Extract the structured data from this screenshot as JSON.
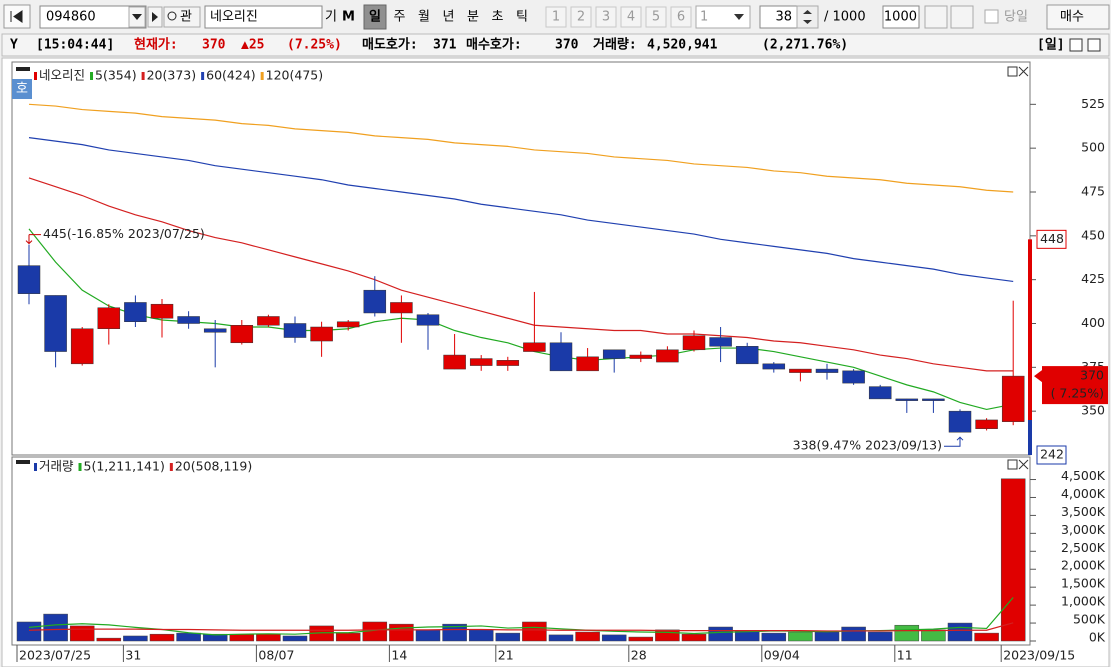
{
  "toolbar": {
    "code": "094860",
    "search": "관",
    "name": "네오리진",
    "buttons": [
      "기",
      "M"
    ],
    "periods": [
      "일",
      "주",
      "월",
      "년",
      "분",
      "초",
      "틱"
    ],
    "slots": [
      "1",
      "2",
      "3",
      "4",
      "5",
      "6"
    ],
    "slot_select": "1",
    "count": "38",
    "total": "/ 1000",
    "total_input": "1000",
    "today": "당일",
    "buy": "매수"
  },
  "info_bar": {
    "time": "[15:04:44]",
    "price_label": "현재가:",
    "price": "370",
    "change": "▲25",
    "change_pct": "(7.25%)",
    "ask_label": "매도호가:",
    "ask": "371",
    "bid_label": "매수호가:",
    "bid": "370",
    "volume_label": "거래량:",
    "volume": "4,520,941",
    "volume_pct": "(2,271.76%)",
    "period": "[일]"
  },
  "chart_data": [
    {
      "type": "candlestick",
      "name": "네오리진",
      "badge": "호",
      "up_color": "#e00000",
      "down_color": "#1a3aa8",
      "open": [
        433,
        416,
        377,
        397,
        412,
        403,
        404,
        397,
        389,
        399,
        400,
        390,
        398,
        419,
        406,
        405,
        374,
        376,
        376,
        384,
        389,
        373,
        385,
        380,
        378,
        385,
        392,
        387,
        377,
        372,
        374,
        373,
        364,
        357,
        357,
        350,
        340,
        344
      ],
      "high": [
        445,
        416,
        398,
        411,
        416,
        414,
        407,
        402,
        402,
        405,
        404,
        401,
        402,
        427,
        416,
        406,
        394,
        382,
        381,
        418,
        395,
        386,
        385,
        384,
        387,
        396,
        398,
        389,
        378,
        374,
        377,
        374,
        365,
        357,
        357,
        351,
        346,
        413
      ],
      "low": [
        411,
        375,
        376,
        388,
        398,
        392,
        397,
        375,
        388,
        398,
        389,
        381,
        396,
        404,
        389,
        385,
        374,
        373,
        373,
        384,
        373,
        373,
        372,
        378,
        378,
        384,
        378,
        377,
        372,
        367,
        368,
        365,
        357,
        349,
        349,
        338,
        339,
        342
      ],
      "close": [
        417,
        384,
        397,
        409,
        401,
        411,
        400,
        395,
        399,
        404,
        392,
        398,
        401,
        406,
        412,
        399,
        382,
        380,
        379,
        389,
        373,
        381,
        380,
        382,
        385,
        393,
        387,
        377,
        374,
        374,
        372,
        366,
        357,
        356,
        356,
        338,
        345,
        370
      ],
      "lines": [
        {
          "name": "5(354)",
          "color": "#22aa22",
          "values": [
            454,
            435,
            419,
            410,
            405,
            402,
            401,
            400,
            398,
            398,
            396,
            396,
            397,
            401,
            403,
            402,
            396,
            392,
            389,
            384,
            381,
            379,
            380,
            381,
            382,
            385,
            386,
            386,
            384,
            381,
            378,
            375,
            370,
            365,
            361,
            355,
            351,
            354
          ]
        },
        {
          "name": "20(373)",
          "color": "#d42020",
          "values": [
            483,
            478,
            473,
            467,
            462,
            458,
            453,
            449,
            446,
            442,
            438,
            434,
            430,
            425,
            419,
            415,
            411,
            407,
            403,
            399,
            398,
            397,
            396,
            396,
            394,
            394,
            393,
            392,
            390,
            389,
            387,
            385,
            382,
            380,
            377,
            375,
            373,
            373
          ]
        },
        {
          "name": "60(424)",
          "color": "#2040b0",
          "values": [
            506,
            504,
            502,
            499,
            497,
            495,
            493,
            490,
            488,
            486,
            484,
            482,
            479,
            477,
            475,
            473,
            471,
            468,
            466,
            464,
            462,
            459,
            457,
            455,
            453,
            451,
            448,
            446,
            444,
            442,
            440,
            437,
            435,
            433,
            431,
            428,
            426,
            424
          ]
        },
        {
          "name": "120(475)",
          "color": "#f0a020",
          "values": [
            525,
            524,
            522,
            521,
            520,
            518,
            517,
            516,
            514,
            513,
            511,
            510,
            509,
            507,
            506,
            505,
            503,
            502,
            501,
            499,
            498,
            497,
            495,
            494,
            493,
            491,
            490,
            489,
            487,
            486,
            484,
            483,
            482,
            480,
            479,
            478,
            476,
            475
          ]
        }
      ],
      "ylim": [
        325,
        548
      ],
      "yticks": [
        350,
        375,
        400,
        425,
        450,
        475,
        500,
        525
      ],
      "annotations": [
        {
          "text": "445(-16.85% 2023/07/25)",
          "color": "#cc0000"
        },
        {
          "text": "338(9.47% 2023/09/13)",
          "color": "#1a3aa8"
        }
      ],
      "upper_limit": 448,
      "lower_limit": 242,
      "last_price": 370,
      "last_change": "( 7.25%)"
    },
    {
      "type": "bar",
      "categories": [
        "2023/07/25",
        null,
        null,
        null,
        "31",
        null,
        null,
        null,
        null,
        "08/07",
        null,
        null,
        null,
        null,
        "14",
        null,
        null,
        null,
        "21",
        null,
        null,
        null,
        null,
        "28",
        null,
        null,
        null,
        null,
        "09/04",
        null,
        null,
        null,
        null,
        "11",
        null,
        null,
        null,
        "2023/09/15"
      ],
      "series": [
        {
          "name": "거래량",
          "color": "#1a3aa8",
          "values": [
            530000,
            750000,
            420000,
            80000,
            140000,
            190000,
            220000,
            190000,
            190000,
            190000,
            140000,
            420000,
            220000,
            530000,
            470000,
            310000,
            470000,
            310000,
            220000,
            530000,
            170000,
            250000,
            170000,
            110000,
            310000,
            190000,
            390000,
            280000,
            220000,
            250000,
            250000,
            390000,
            250000,
            440000,
            310000,
            500000,
            220000,
            4520941
          ],
          "colors": [
            "#1a3aa8",
            "#1a3aa8",
            "#e00000",
            "#e00000",
            "#1a3aa8",
            "#e00000",
            "#1a3aa8",
            "#1a3aa8",
            "#e00000",
            "#e00000",
            "#1a3aa8",
            "#e00000",
            "#e00000",
            "#e00000",
            "#e00000",
            "#1a3aa8",
            "#1a3aa8",
            "#1a3aa8",
            "#1a3aa8",
            "#e00000",
            "#1a3aa8",
            "#e00000",
            "#1a3aa8",
            "#e00000",
            "#e00000",
            "#e00000",
            "#1a3aa8",
            "#1a3aa8",
            "#1a3aa8",
            "#44bb44",
            "#1a3aa8",
            "#1a3aa8",
            "#1a3aa8",
            "#44bb44",
            "#44bb44",
            "#1a3aa8",
            "#e00000",
            "#e00000"
          ]
        }
      ],
      "lines": [
        {
          "name": "5(1,211,141)",
          "color": "#22aa22",
          "values": [
            380000,
            450000,
            480000,
            450000,
            380000,
            320000,
            230000,
            170000,
            190000,
            200000,
            190000,
            230000,
            230000,
            300000,
            360000,
            390000,
            400000,
            420000,
            360000,
            380000,
            340000,
            300000,
            270000,
            250000,
            240000,
            210000,
            240000,
            260000,
            280000,
            270000,
            260000,
            280000,
            290000,
            310000,
            330000,
            380000,
            350000,
            1211141
          ]
        },
        {
          "name": "20(508,119)",
          "color": "#d42020",
          "values": [
            300000,
            320000,
            330000,
            330000,
            330000,
            320000,
            320000,
            310000,
            300000,
            300000,
            300000,
            300000,
            300000,
            310000,
            310000,
            310000,
            320000,
            320000,
            310000,
            310000,
            300000,
            300000,
            300000,
            300000,
            290000,
            290000,
            290000,
            290000,
            290000,
            290000,
            280000,
            280000,
            280000,
            290000,
            290000,
            300000,
            300000,
            508119
          ]
        }
      ],
      "ylim": [
        0,
        5100000
      ],
      "yticks": [
        {
          "value": 0,
          "label": "0K"
        },
        {
          "value": 500000,
          "label": "500K"
        },
        {
          "value": 1000000,
          "label": "1,000K"
        },
        {
          "value": 1500000,
          "label": "1,500K"
        },
        {
          "value": 2000000,
          "label": "2,000K"
        },
        {
          "value": 2500000,
          "label": "2,500K"
        },
        {
          "value": 3000000,
          "label": "3,000K"
        },
        {
          "value": 3500000,
          "label": "3,500K"
        },
        {
          "value": 4000000,
          "label": "4,000K"
        },
        {
          "value": 4500000,
          "label": "4,500K"
        }
      ]
    }
  ]
}
